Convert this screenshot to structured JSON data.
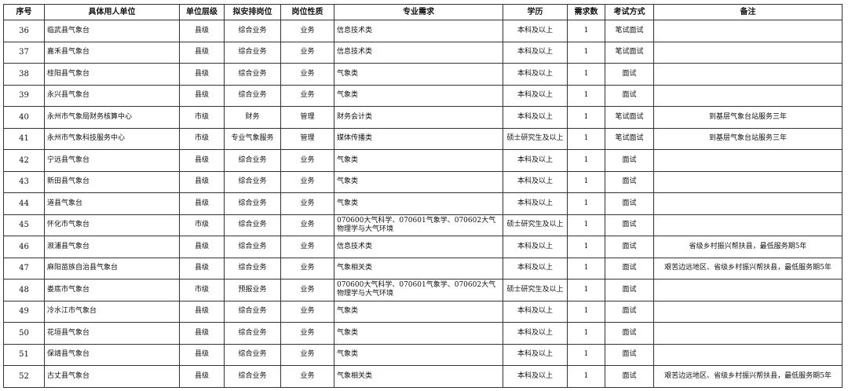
{
  "table": {
    "columns": [
      "序号",
      "具体用人单位",
      "单位层级",
      "拟安排岗位",
      "岗位性质",
      "专业需求",
      "学历",
      "需求数",
      "考试方式",
      "备注"
    ],
    "rows": [
      [
        "36",
        "临武县气象台",
        "县级",
        "综合业务",
        "业务",
        "信息技术类",
        "本科及以上",
        "1",
        "笔试面试",
        ""
      ],
      [
        "37",
        "嘉禾县气象台",
        "县级",
        "综合业务",
        "业务",
        "信息技术类",
        "本科及以上",
        "1",
        "笔试面试",
        ""
      ],
      [
        "38",
        "桂阳县气象台",
        "县级",
        "综合业务",
        "业务",
        "气象类",
        "本科及以上",
        "1",
        "面试",
        ""
      ],
      [
        "39",
        "永兴县气象台",
        "县级",
        "综合业务",
        "业务",
        "气象类",
        "本科及以上",
        "1",
        "面试",
        ""
      ],
      [
        "40",
        "永州市气象局财务核算中心",
        "市级",
        "财务",
        "管理",
        "财务会计类",
        "本科及以上",
        "1",
        "笔试面试",
        "到基层气象台站服务三年"
      ],
      [
        "41",
        "永州市气象科技服务中心",
        "市级",
        "专业气象服务",
        "管理",
        "媒体传播类",
        "硕士研究生及以上",
        "1",
        "笔试面试",
        "到基层气象台站服务三年"
      ],
      [
        "42",
        "宁远县气象台",
        "县级",
        "综合业务",
        "业务",
        "气象类",
        "本科及以上",
        "1",
        "面试",
        ""
      ],
      [
        "43",
        "新田县气象台",
        "县级",
        "综合业务",
        "业务",
        "气象类",
        "本科及以上",
        "1",
        "面试",
        ""
      ],
      [
        "44",
        "道县气象台",
        "县级",
        "综合业务",
        "业务",
        "气象类",
        "本科及以上",
        "1",
        "面试",
        ""
      ],
      [
        "45",
        "怀化市气象台",
        "市级",
        "综合业务",
        "业务",
        "070600大气科学、070601气象学、070602大气物理学与大气环境",
        "硕士研究生及以上",
        "1",
        "面试",
        ""
      ],
      [
        "46",
        "溆浦县气象台",
        "县级",
        "综合业务",
        "业务",
        "信息技术类",
        "本科及以上",
        "1",
        "面试",
        "省级乡村振兴帮扶县，最低服务期5年"
      ],
      [
        "47",
        "麻阳苗族自治县气象台",
        "县级",
        "综合业务",
        "业务",
        "气象相关类",
        "本科及以上",
        "1",
        "面试",
        "艰苦边远地区、省级乡村振兴帮扶县，最低服务期5年"
      ],
      [
        "48",
        "娄底市气象台",
        "市级",
        "预报业务",
        "业务",
        "070600大气科学、070601气象学、070602大气物理学与大气环境",
        "硕士研究生及以上",
        "1",
        "面试",
        ""
      ],
      [
        "49",
        "冷水江市气象台",
        "县级",
        "综合业务",
        "业务",
        "气象类",
        "本科及以上",
        "1",
        "面试",
        ""
      ],
      [
        "50",
        "花垣县气象台",
        "县级",
        "综合业务",
        "业务",
        "气象类",
        "本科及以上",
        "1",
        "面试",
        ""
      ],
      [
        "51",
        "保靖县气象台",
        "县级",
        "综合业务",
        "业务",
        "气象类",
        "本科及以上",
        "1",
        "面试",
        ""
      ],
      [
        "52",
        "古丈县气象台",
        "县级",
        "综合业务",
        "业务",
        "气象相关类",
        "本科及以上",
        "1",
        "面试",
        "艰苦边远地区、省级乡村振兴帮扶县，最低服务期5年"
      ]
    ]
  }
}
